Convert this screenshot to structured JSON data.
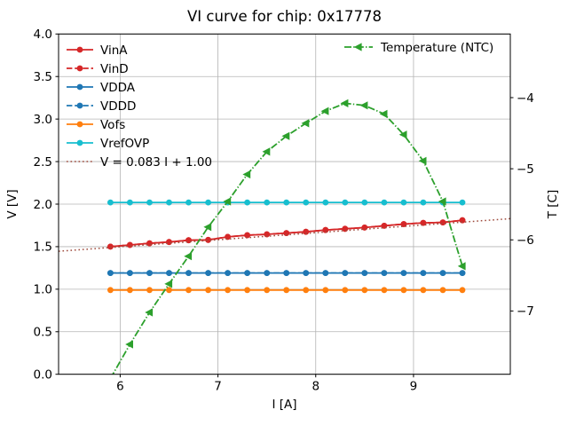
{
  "chart_data": {
    "type": "line",
    "title": "VI curve for chip: 0x17778",
    "xlabel": "I [A]",
    "ylabel_left": "V [V]",
    "ylabel_right": "T [C]",
    "xlim": [
      5.37,
      9.99
    ],
    "ylim_left": [
      0.0,
      4.0
    ],
    "ylim_right": [
      -7.89,
      -3.105
    ],
    "xticks": [
      6,
      7,
      8,
      9
    ],
    "yticks_left": [
      0.0,
      0.5,
      1.0,
      1.5,
      2.0,
      2.5,
      3.0,
      3.5,
      4.0
    ],
    "yticks_right": [
      -4,
      -5,
      -6,
      -7
    ],
    "grid": true,
    "legend_left_position": "upper left",
    "legend_right_position": "upper right",
    "x": [
      5.9,
      6.1,
      6.3,
      6.5,
      6.7,
      6.9,
      7.1,
      7.3,
      7.5,
      7.7,
      7.9,
      8.1,
      8.3,
      8.5,
      8.7,
      8.9,
      9.1,
      9.3,
      9.5
    ],
    "series": [
      {
        "name": "VinA",
        "label": "VinA",
        "color": "#d62728",
        "linestyle": "solid",
        "marker": "circle",
        "axis": "left",
        "legend": "left",
        "values": [
          1.5,
          1.52,
          1.54,
          1.555,
          1.575,
          1.58,
          1.615,
          1.635,
          1.645,
          1.66,
          1.675,
          1.695,
          1.71,
          1.725,
          1.745,
          1.765,
          1.78,
          1.785,
          1.81
        ]
      },
      {
        "name": "VinD",
        "label": "VinD",
        "color": "#d62728",
        "linestyle": "dashed",
        "marker": "circle",
        "axis": "left",
        "legend": "left",
        "values": [
          1.5,
          1.52,
          1.54,
          1.555,
          1.575,
          1.58,
          1.615,
          1.635,
          1.645,
          1.66,
          1.675,
          1.695,
          1.71,
          1.725,
          1.745,
          1.765,
          1.78,
          1.785,
          1.81
        ]
      },
      {
        "name": "VDDA",
        "label": "VDDA",
        "color": "#1f77b4",
        "linestyle": "solid",
        "marker": "circle",
        "axis": "left",
        "legend": "left",
        "values": [
          1.19,
          1.19,
          1.19,
          1.19,
          1.19,
          1.19,
          1.19,
          1.19,
          1.19,
          1.19,
          1.19,
          1.19,
          1.19,
          1.19,
          1.19,
          1.19,
          1.19,
          1.19,
          1.19
        ]
      },
      {
        "name": "VDDD",
        "label": "VDDD",
        "color": "#1f77b4",
        "linestyle": "dashed",
        "marker": "circle",
        "axis": "left",
        "legend": "left",
        "values": [
          1.19,
          1.19,
          1.19,
          1.19,
          1.19,
          1.19,
          1.19,
          1.19,
          1.19,
          1.19,
          1.19,
          1.19,
          1.19,
          1.19,
          1.19,
          1.19,
          1.19,
          1.19,
          1.19
        ]
      },
      {
        "name": "Vofs",
        "label": "Vofs",
        "color": "#ff7f0e",
        "linestyle": "solid",
        "marker": "circle",
        "axis": "left",
        "legend": "left",
        "values": [
          0.99,
          0.99,
          0.99,
          0.99,
          0.99,
          0.99,
          0.99,
          0.99,
          0.99,
          0.99,
          0.99,
          0.99,
          0.99,
          0.99,
          0.99,
          0.99,
          0.99,
          0.99,
          0.99
        ]
      },
      {
        "name": "VrefOVP",
        "label": "VrefOVP",
        "color": "#17becf",
        "linestyle": "solid",
        "marker": "circle",
        "axis": "left",
        "legend": "left",
        "values": [
          2.02,
          2.02,
          2.02,
          2.02,
          2.02,
          2.02,
          2.02,
          2.02,
          2.02,
          2.02,
          2.02,
          2.02,
          2.02,
          2.02,
          2.02,
          2.02,
          2.02,
          2.02,
          2.02
        ]
      },
      {
        "name": "fit-line",
        "label": "V = 0.083 I + 1.00",
        "color": "#9e4a3c",
        "linestyle": "dotted",
        "marker": "none",
        "axis": "left",
        "legend": "left",
        "fit": {
          "slope": 0.083,
          "intercept": 1.0
        }
      },
      {
        "name": "temperature",
        "label": "Temperature (NTC)",
        "color": "#2ca02c",
        "linestyle": "dashdot",
        "marker": "triangle-left",
        "axis": "right",
        "legend": "right",
        "values": [
          -7.95,
          -7.47,
          -7.02,
          -6.62,
          -6.23,
          -5.82,
          -5.46,
          -5.08,
          -4.76,
          -4.54,
          -4.36,
          -4.19,
          -4.08,
          -4.11,
          -4.23,
          -4.52,
          -4.89,
          -5.46,
          -6.37
        ]
      }
    ],
    "colors": {
      "grid": "#b4b4b4",
      "spine": "#000000",
      "background": "#ffffff"
    }
  }
}
